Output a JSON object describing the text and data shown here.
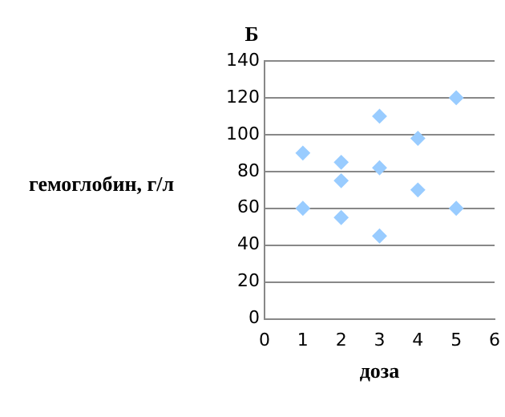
{
  "chart_data": {
    "type": "scatter",
    "title": "Б",
    "xlabel": "доза",
    "ylabel": "гемоглобин, г/л",
    "series": [
      {
        "color": "#99ccff",
        "x": [
          1,
          1,
          2,
          2,
          2,
          3,
          3,
          3,
          4,
          4,
          5,
          5
        ],
        "values": [
          90,
          60,
          85,
          75,
          55,
          110,
          82,
          45,
          98,
          70,
          120,
          60
        ]
      }
    ],
    "xlim": [
      0,
      6
    ],
    "xticks": [
      0,
      1,
      2,
      3,
      4,
      5,
      6
    ],
    "ylim": [
      0,
      140
    ],
    "yticks": [
      0,
      20,
      40,
      60,
      80,
      100,
      120,
      140
    ],
    "grid": "y",
    "marker": "diamond",
    "legend": false
  }
}
